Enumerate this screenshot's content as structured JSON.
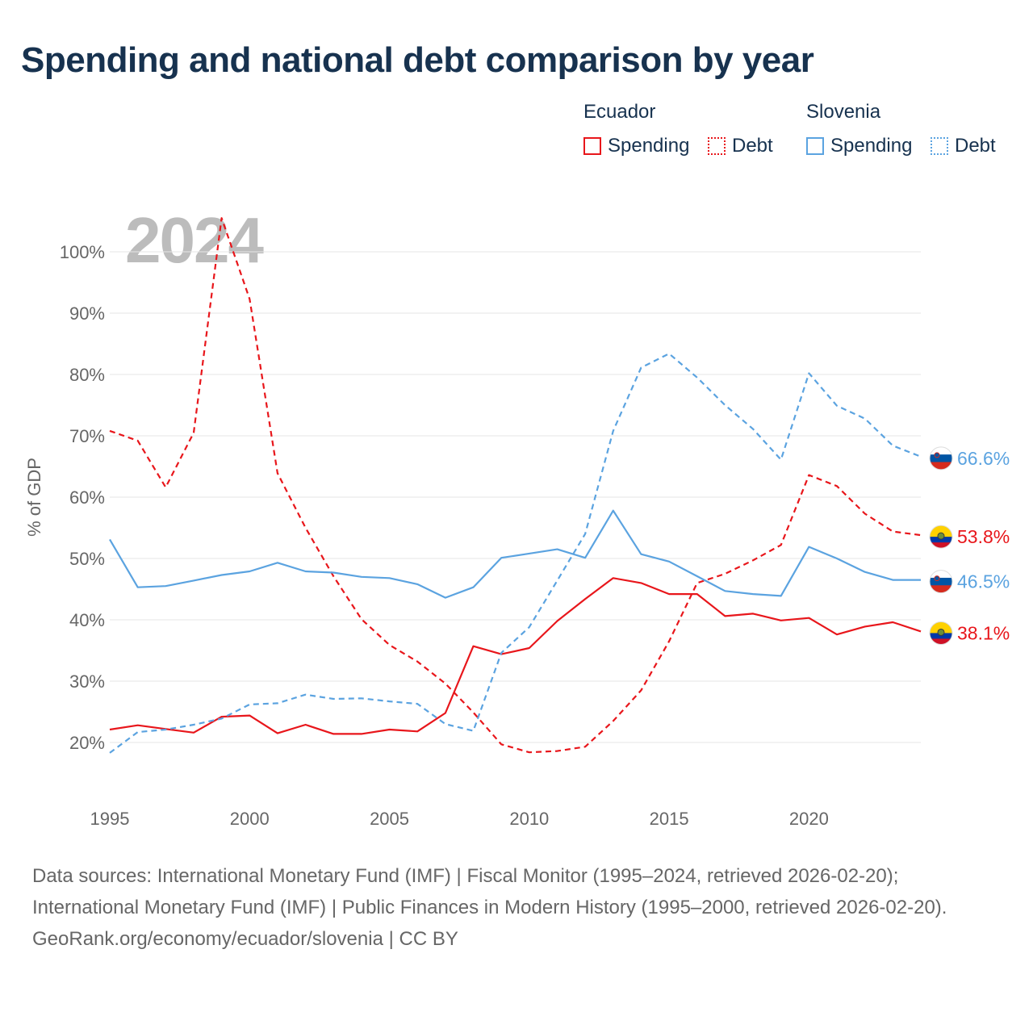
{
  "title": "Spending and national debt comparison by year",
  "year_label": "2024",
  "legend": {
    "ecuador": {
      "name": "Ecuador",
      "spending": "Spending",
      "debt": "Debt"
    },
    "slovenia": {
      "name": "Slovenia",
      "spending": "Spending",
      "debt": "Debt"
    }
  },
  "colors": {
    "ecuador": "#e8161b",
    "slovenia": "#5ba3e0",
    "grid": "#e6e6e6",
    "axis_text": "#666666"
  },
  "chart_data": {
    "type": "line",
    "title": "Spending and national debt comparison by year",
    "xlabel": "",
    "ylabel": "% of GDP",
    "xlim": [
      1995,
      2024
    ],
    "ylim": [
      13,
      107
    ],
    "x_ticks": [
      1995,
      2000,
      2005,
      2010,
      2015,
      2020
    ],
    "y_ticks": [
      20,
      30,
      40,
      50,
      60,
      70,
      80,
      90,
      100
    ],
    "y_tick_labels": [
      "20%",
      "30%",
      "40%",
      "50%",
      "60%",
      "70%",
      "80%",
      "90%",
      "100%"
    ],
    "x": [
      1995,
      1996,
      1997,
      1998,
      1999,
      2000,
      2001,
      2002,
      2003,
      2004,
      2005,
      2006,
      2007,
      2008,
      2009,
      2010,
      2011,
      2012,
      2013,
      2014,
      2015,
      2016,
      2017,
      2018,
      2019,
      2020,
      2021,
      2022,
      2023,
      2024
    ],
    "series": [
      {
        "name": "Ecuador Spending",
        "country": "ecuador",
        "style": "solid",
        "values": [
          22.1,
          22.8,
          22.2,
          21.6,
          24.2,
          24.4,
          21.5,
          22.9,
          21.4,
          21.4,
          22.1,
          21.8,
          24.8,
          35.7,
          34.4,
          35.4,
          39.8,
          43.4,
          46.8,
          46.0,
          44.2,
          44.2,
          40.6,
          41.0,
          39.9,
          40.3,
          37.6,
          38.9,
          39.6,
          38.1
        ],
        "end_label": "38.1%"
      },
      {
        "name": "Ecuador Debt",
        "country": "ecuador",
        "style": "dashed",
        "values": [
          70.8,
          69.2,
          61.6,
          70.5,
          105.5,
          92.3,
          63.9,
          55.0,
          47.1,
          40.1,
          35.9,
          33.2,
          29.6,
          24.9,
          19.7,
          18.4,
          18.6,
          19.3,
          23.5,
          28.5,
          36.5,
          46.0,
          47.5,
          49.7,
          52.2,
          63.6,
          61.8,
          57.3,
          54.4,
          53.8
        ],
        "end_label": "53.8%"
      },
      {
        "name": "Slovenia Spending",
        "country": "slovenia",
        "style": "solid",
        "values": [
          53.1,
          45.3,
          45.5,
          46.4,
          47.3,
          47.9,
          49.3,
          47.9,
          47.7,
          47.0,
          46.8,
          45.8,
          43.6,
          45.3,
          50.1,
          50.8,
          51.5,
          50.1,
          57.8,
          50.7,
          49.5,
          47.1,
          44.7,
          44.2,
          43.9,
          51.9,
          50.0,
          47.8,
          46.5,
          46.5
        ],
        "end_label": "46.5%"
      },
      {
        "name": "Slovenia Debt",
        "country": "slovenia",
        "style": "dashed",
        "values": [
          18.3,
          21.7,
          22.1,
          22.9,
          23.9,
          26.2,
          26.4,
          27.8,
          27.1,
          27.2,
          26.7,
          26.3,
          23.0,
          21.9,
          34.6,
          38.8,
          46.4,
          54.0,
          70.8,
          81.1,
          83.4,
          79.5,
          75.0,
          71.1,
          66.1,
          80.2,
          74.9,
          72.8,
          68.4,
          66.6
        ],
        "end_label": "66.6%"
      }
    ]
  },
  "footer": {
    "sources": "Data sources: International Monetary Fund (IMF) | Fiscal Monitor (1995–2024, retrieved 2026-02-20); International Monetary Fund (IMF) | Public Finances in Modern History (1995–2000, retrieved 2026-02-20).",
    "credit": "GeoRank.org/economy/ecuador/slovenia | CC BY"
  }
}
